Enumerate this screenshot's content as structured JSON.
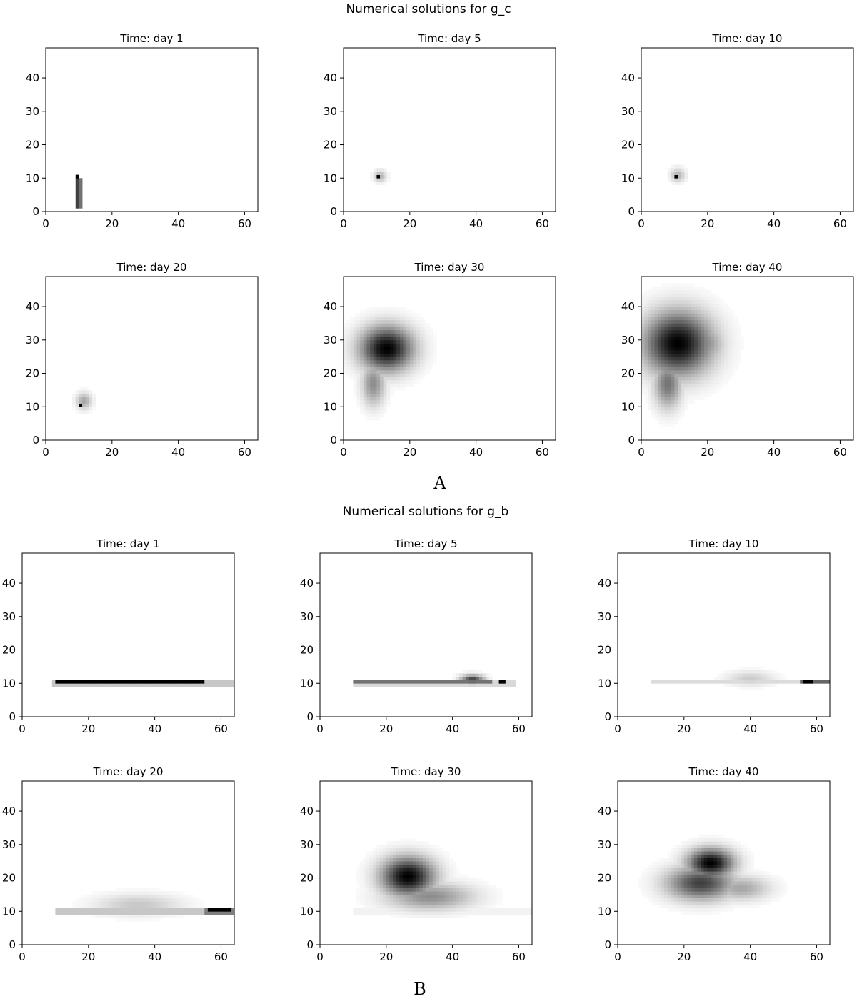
{
  "figures": [
    {
      "title": "Numerical solutions for g_c",
      "label": "A"
    },
    {
      "title": "Numerical solutions for g_b",
      "label": "B"
    }
  ],
  "chart_data": [
    {
      "type": "heatmap",
      "figure": "A",
      "variable": "g_c",
      "title": "Time: day 1",
      "xlim": [
        0,
        64
      ],
      "ylim": [
        0,
        49
      ],
      "xticks": [
        0,
        20,
        40,
        60
      ],
      "yticks": [
        0,
        10,
        20,
        30,
        40
      ],
      "colormap": "gray_r",
      "blobs": [
        {
          "type": "rect",
          "x0": 9,
          "x1": 11,
          "y0": 1,
          "y1": 10.5,
          "value": 0.55
        },
        {
          "type": "rect",
          "x0": 9.5,
          "x1": 10.5,
          "y0": 1,
          "y1": 10.5,
          "value": 0.75
        },
        {
          "type": "rect",
          "x0": 9.5,
          "x1": 10.5,
          "y0": 10,
          "y1": 11,
          "value": 1.0
        }
      ]
    },
    {
      "type": "heatmap",
      "figure": "A",
      "variable": "g_c",
      "title": "Time: day 5",
      "xlim": [
        0,
        64
      ],
      "ylim": [
        0,
        49
      ],
      "xticks": [
        0,
        20,
        40,
        60
      ],
      "yticks": [
        0,
        10,
        20,
        30,
        40
      ],
      "colormap": "gray_r",
      "blobs": [
        {
          "type": "gauss",
          "cx": 11,
          "cy": 10.7,
          "sx": 1.3,
          "sy": 1.2,
          "value": 0.3
        },
        {
          "type": "rect",
          "x0": 10,
          "x1": 11,
          "y0": 10,
          "y1": 11,
          "value": 1.0
        }
      ]
    },
    {
      "type": "heatmap",
      "figure": "A",
      "variable": "g_c",
      "title": "Time: day 10",
      "xlim": [
        0,
        64
      ],
      "ylim": [
        0,
        49
      ],
      "xticks": [
        0,
        20,
        40,
        60
      ],
      "yticks": [
        0,
        10,
        20,
        30,
        40
      ],
      "colormap": "gray_r",
      "blobs": [
        {
          "type": "gauss",
          "cx": 11,
          "cy": 11,
          "sx": 1.5,
          "sy": 1.4,
          "value": 0.3
        },
        {
          "type": "rect",
          "x0": 10,
          "x1": 11,
          "y0": 10,
          "y1": 11,
          "value": 1.0
        }
      ]
    },
    {
      "type": "heatmap",
      "figure": "A",
      "variable": "g_c",
      "title": "Time: day 20",
      "xlim": [
        0,
        64
      ],
      "ylim": [
        0,
        49
      ],
      "xticks": [
        0,
        20,
        40,
        60
      ],
      "yticks": [
        0,
        10,
        20,
        30,
        40
      ],
      "colormap": "gray_r",
      "blobs": [
        {
          "type": "gauss",
          "cx": 11.5,
          "cy": 11.8,
          "sx": 1.6,
          "sy": 1.7,
          "value": 0.35
        },
        {
          "type": "rect",
          "x0": 10,
          "x1": 11,
          "y0": 10,
          "y1": 11,
          "value": 1.0
        }
      ]
    },
    {
      "type": "heatmap",
      "figure": "A",
      "variable": "g_c",
      "title": "Time: day 30",
      "xlim": [
        0,
        64
      ],
      "ylim": [
        0,
        49
      ],
      "xticks": [
        0,
        20,
        40,
        60
      ],
      "yticks": [
        0,
        10,
        20,
        30,
        40
      ],
      "colormap": "gray_r",
      "blobs": [
        {
          "type": "gauss",
          "cx": 13,
          "cy": 27.5,
          "sx": 5.5,
          "sy": 4.6,
          "value": 1.0
        },
        {
          "type": "gauss",
          "cx": 9,
          "cy": 17,
          "sx": 2.4,
          "sy": 4.5,
          "value": 0.45
        }
      ]
    },
    {
      "type": "heatmap",
      "figure": "A",
      "variable": "g_c",
      "title": "Time: day 40",
      "xlim": [
        0,
        64
      ],
      "ylim": [
        0,
        49
      ],
      "xticks": [
        0,
        20,
        40,
        60
      ],
      "yticks": [
        0,
        10,
        20,
        30,
        40
      ],
      "colormap": "gray_r",
      "blobs": [
        {
          "type": "gauss",
          "cx": 11,
          "cy": 29,
          "sx": 7,
          "sy": 6.5,
          "value": 1.0
        },
        {
          "type": "gauss",
          "cx": 18,
          "cy": 29,
          "sx": 4.5,
          "sy": 4.5,
          "value": 0.5
        },
        {
          "type": "gauss",
          "cx": 8,
          "cy": 17,
          "sx": 2.8,
          "sy": 5,
          "value": 0.55
        }
      ]
    },
    {
      "type": "heatmap",
      "figure": "B",
      "variable": "g_b",
      "title": "Time: day 1",
      "xlim": [
        0,
        64
      ],
      "ylim": [
        0,
        49
      ],
      "xticks": [
        0,
        20,
        40,
        60
      ],
      "yticks": [
        0,
        10,
        20,
        30,
        40
      ],
      "colormap": "gray_r",
      "blobs": [
        {
          "type": "rect",
          "x0": 9,
          "x1": 64,
          "y0": 9.5,
          "y1": 11,
          "value": 0.22
        },
        {
          "type": "rect",
          "x0": 10,
          "x1": 55,
          "y0": 10,
          "y1": 11,
          "value": 1.0
        }
      ]
    },
    {
      "type": "heatmap",
      "figure": "B",
      "variable": "g_b",
      "title": "Time: day 5",
      "xlim": [
        0,
        64
      ],
      "ylim": [
        0,
        49
      ],
      "xticks": [
        0,
        20,
        40,
        60
      ],
      "yticks": [
        0,
        10,
        20,
        30,
        40
      ],
      "colormap": "gray_r",
      "blobs": [
        {
          "type": "rect",
          "x0": 10,
          "x1": 59,
          "y0": 9.5,
          "y1": 11,
          "value": 0.15
        },
        {
          "type": "rect",
          "x0": 10,
          "x1": 52,
          "y0": 10,
          "y1": 11,
          "value": 0.55
        },
        {
          "type": "gauss",
          "cx": 46,
          "cy": 11.2,
          "sx": 2.4,
          "sy": 1.0,
          "value": 0.75
        },
        {
          "type": "rect",
          "x0": 54,
          "x1": 56,
          "y0": 10,
          "y1": 11,
          "value": 1.0
        }
      ]
    },
    {
      "type": "heatmap",
      "figure": "B",
      "variable": "g_b",
      "title": "Time: day 10",
      "xlim": [
        0,
        64
      ],
      "ylim": [
        0,
        49
      ],
      "xticks": [
        0,
        20,
        40,
        60
      ],
      "yticks": [
        0,
        10,
        20,
        30,
        40
      ],
      "colormap": "gray_r",
      "blobs": [
        {
          "type": "rect",
          "x0": 10,
          "x1": 55,
          "y0": 10,
          "y1": 11,
          "value": 0.14
        },
        {
          "type": "gauss",
          "cx": 40,
          "cy": 11.5,
          "sx": 5,
          "sy": 1.5,
          "value": 0.2
        },
        {
          "type": "rect",
          "x0": 55,
          "x1": 64,
          "y0": 10,
          "y1": 11,
          "value": 0.6
        },
        {
          "type": "rect",
          "x0": 56,
          "x1": 59,
          "y0": 10,
          "y1": 11,
          "value": 1.0
        }
      ]
    },
    {
      "type": "heatmap",
      "figure": "B",
      "variable": "g_b",
      "title": "Time: day 20",
      "xlim": [
        0,
        64
      ],
      "ylim": [
        0,
        49
      ],
      "xticks": [
        0,
        20,
        40,
        60
      ],
      "yticks": [
        0,
        10,
        20,
        30,
        40
      ],
      "colormap": "gray_r",
      "blobs": [
        {
          "type": "rect",
          "x0": 10,
          "x1": 55,
          "y0": 9.5,
          "y1": 11,
          "value": 0.22
        },
        {
          "type": "gauss",
          "cx": 35,
          "cy": 12,
          "sx": 9,
          "sy": 2.2,
          "value": 0.22
        },
        {
          "type": "rect",
          "x0": 55,
          "x1": 64,
          "y0": 9.5,
          "y1": 11,
          "value": 0.5
        },
        {
          "type": "rect",
          "x0": 56,
          "x1": 63,
          "y0": 10,
          "y1": 11,
          "value": 1.0
        }
      ]
    },
    {
      "type": "heatmap",
      "figure": "B",
      "variable": "g_b",
      "title": "Time: day 30",
      "xlim": [
        0,
        64
      ],
      "ylim": [
        0,
        49
      ],
      "xticks": [
        0,
        20,
        40,
        60
      ],
      "yticks": [
        0,
        10,
        20,
        30,
        40
      ],
      "colormap": "gray_r",
      "blobs": [
        {
          "type": "gauss",
          "cx": 26.5,
          "cy": 20.5,
          "sx": 5.5,
          "sy": 4.0,
          "value": 1.0
        },
        {
          "type": "gauss",
          "cx": 33,
          "cy": 14.5,
          "sx": 9,
          "sy": 2.8,
          "value": 0.45
        },
        {
          "type": "rect",
          "x0": 10,
          "x1": 64,
          "y0": 9.5,
          "y1": 11,
          "value": 0.05
        }
      ]
    },
    {
      "type": "heatmap",
      "figure": "B",
      "variable": "g_b",
      "title": "Time: day 40",
      "xlim": [
        0,
        64
      ],
      "ylim": [
        0,
        49
      ],
      "xticks": [
        0,
        20,
        40,
        60
      ],
      "yticks": [
        0,
        10,
        20,
        30,
        40
      ],
      "colormap": "gray_r",
      "blobs": [
        {
          "type": "gauss",
          "cx": 28,
          "cy": 24.5,
          "sx": 4.8,
          "sy": 3.0,
          "value": 1.0
        },
        {
          "type": "gauss",
          "cx": 25,
          "cy": 18.5,
          "sx": 7,
          "sy": 3.5,
          "value": 0.75
        },
        {
          "type": "gauss",
          "cx": 37,
          "cy": 17,
          "sx": 6,
          "sy": 2.5,
          "value": 0.35
        }
      ]
    }
  ]
}
